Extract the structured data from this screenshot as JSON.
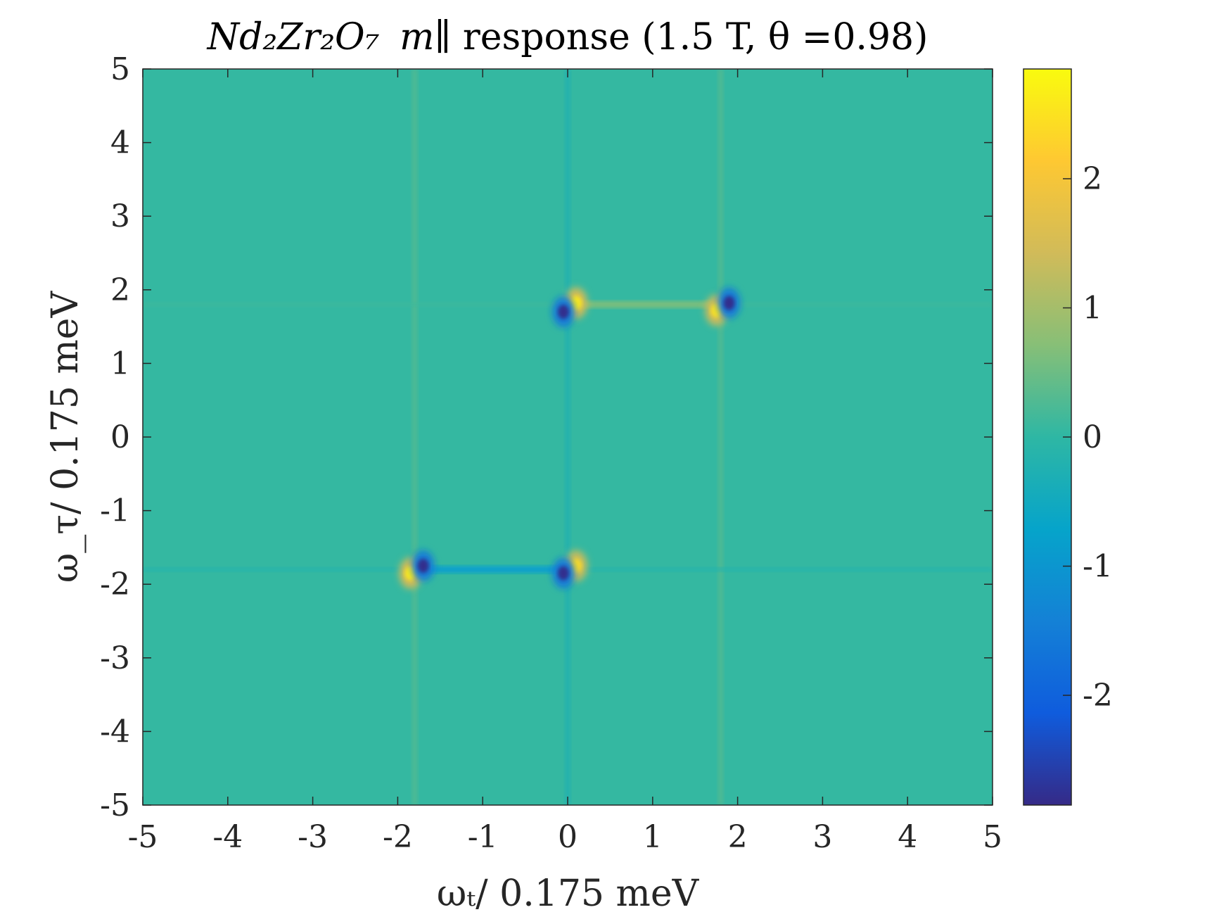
{
  "chart_data": {
    "type": "heatmap",
    "title": {
      "formula": "Nd₂Zr₂O₇",
      "quantity": "m∥",
      "rest": " response (1.5 T, θ =0.98)"
    },
    "xlabel": "ωₜ/ 0.175 meV",
    "ylabel": "ω_τ/ 0.175 meV",
    "xlim": [
      -5,
      5
    ],
    "ylim": [
      -5,
      5
    ],
    "xticks": [
      -5,
      -4,
      -3,
      -2,
      -1,
      0,
      1,
      2,
      3,
      4,
      5
    ],
    "yticks": [
      -5,
      -4,
      -3,
      -2,
      -1,
      0,
      1,
      2,
      3,
      4,
      5
    ],
    "xtick_labels": [
      "-5",
      "-4",
      "-3",
      "-2",
      "-1",
      "0",
      "1",
      "2",
      "3",
      "4",
      "5"
    ],
    "ytick_labels": [
      "-5",
      "-4",
      "-3",
      "-2",
      "-1",
      "0",
      "1",
      "2",
      "3",
      "4",
      "5"
    ],
    "colorbar": {
      "clim": [
        -2.85,
        2.85
      ],
      "ticks": [
        -2,
        -1,
        0,
        1,
        2
      ],
      "tick_labels": [
        "-2",
        "-1",
        "0",
        "1",
        "2"
      ],
      "colormap": "parula",
      "colors": [
        "#352a87",
        "#0f5cdd",
        "#1481d6",
        "#06a4ca",
        "#2eb7a4",
        "#87bf77",
        "#d1bb59",
        "#fec832",
        "#f9fb0e"
      ]
    },
    "background_value": 0.05,
    "features": {
      "horizontal_segments": [
        {
          "y": 1.8,
          "x_from": 0.05,
          "x_to": 1.8,
          "value": 0.6
        },
        {
          "y": -1.8,
          "x_from": -1.75,
          "x_to": 0.0,
          "value": -0.8
        }
      ],
      "vertical_streaks": [
        {
          "x": 0.0,
          "value": -0.25
        },
        {
          "x": 1.8,
          "value": 0.3
        },
        {
          "x": -1.8,
          "value": 0.3
        }
      ],
      "peaks": [
        {
          "x": 0.1,
          "y": 1.82,
          "value": 2.6
        },
        {
          "x": -0.05,
          "y": 1.7,
          "value": -2.8
        },
        {
          "x": 1.75,
          "y": 1.72,
          "value": 2.5
        },
        {
          "x": 1.9,
          "y": 1.82,
          "value": -2.8
        },
        {
          "x": -1.85,
          "y": -1.85,
          "value": 2.6
        },
        {
          "x": -1.7,
          "y": -1.75,
          "value": -2.8
        },
        {
          "x": 0.1,
          "y": -1.75,
          "value": 2.4
        },
        {
          "x": -0.05,
          "y": -1.85,
          "value": -2.8
        }
      ]
    }
  }
}
